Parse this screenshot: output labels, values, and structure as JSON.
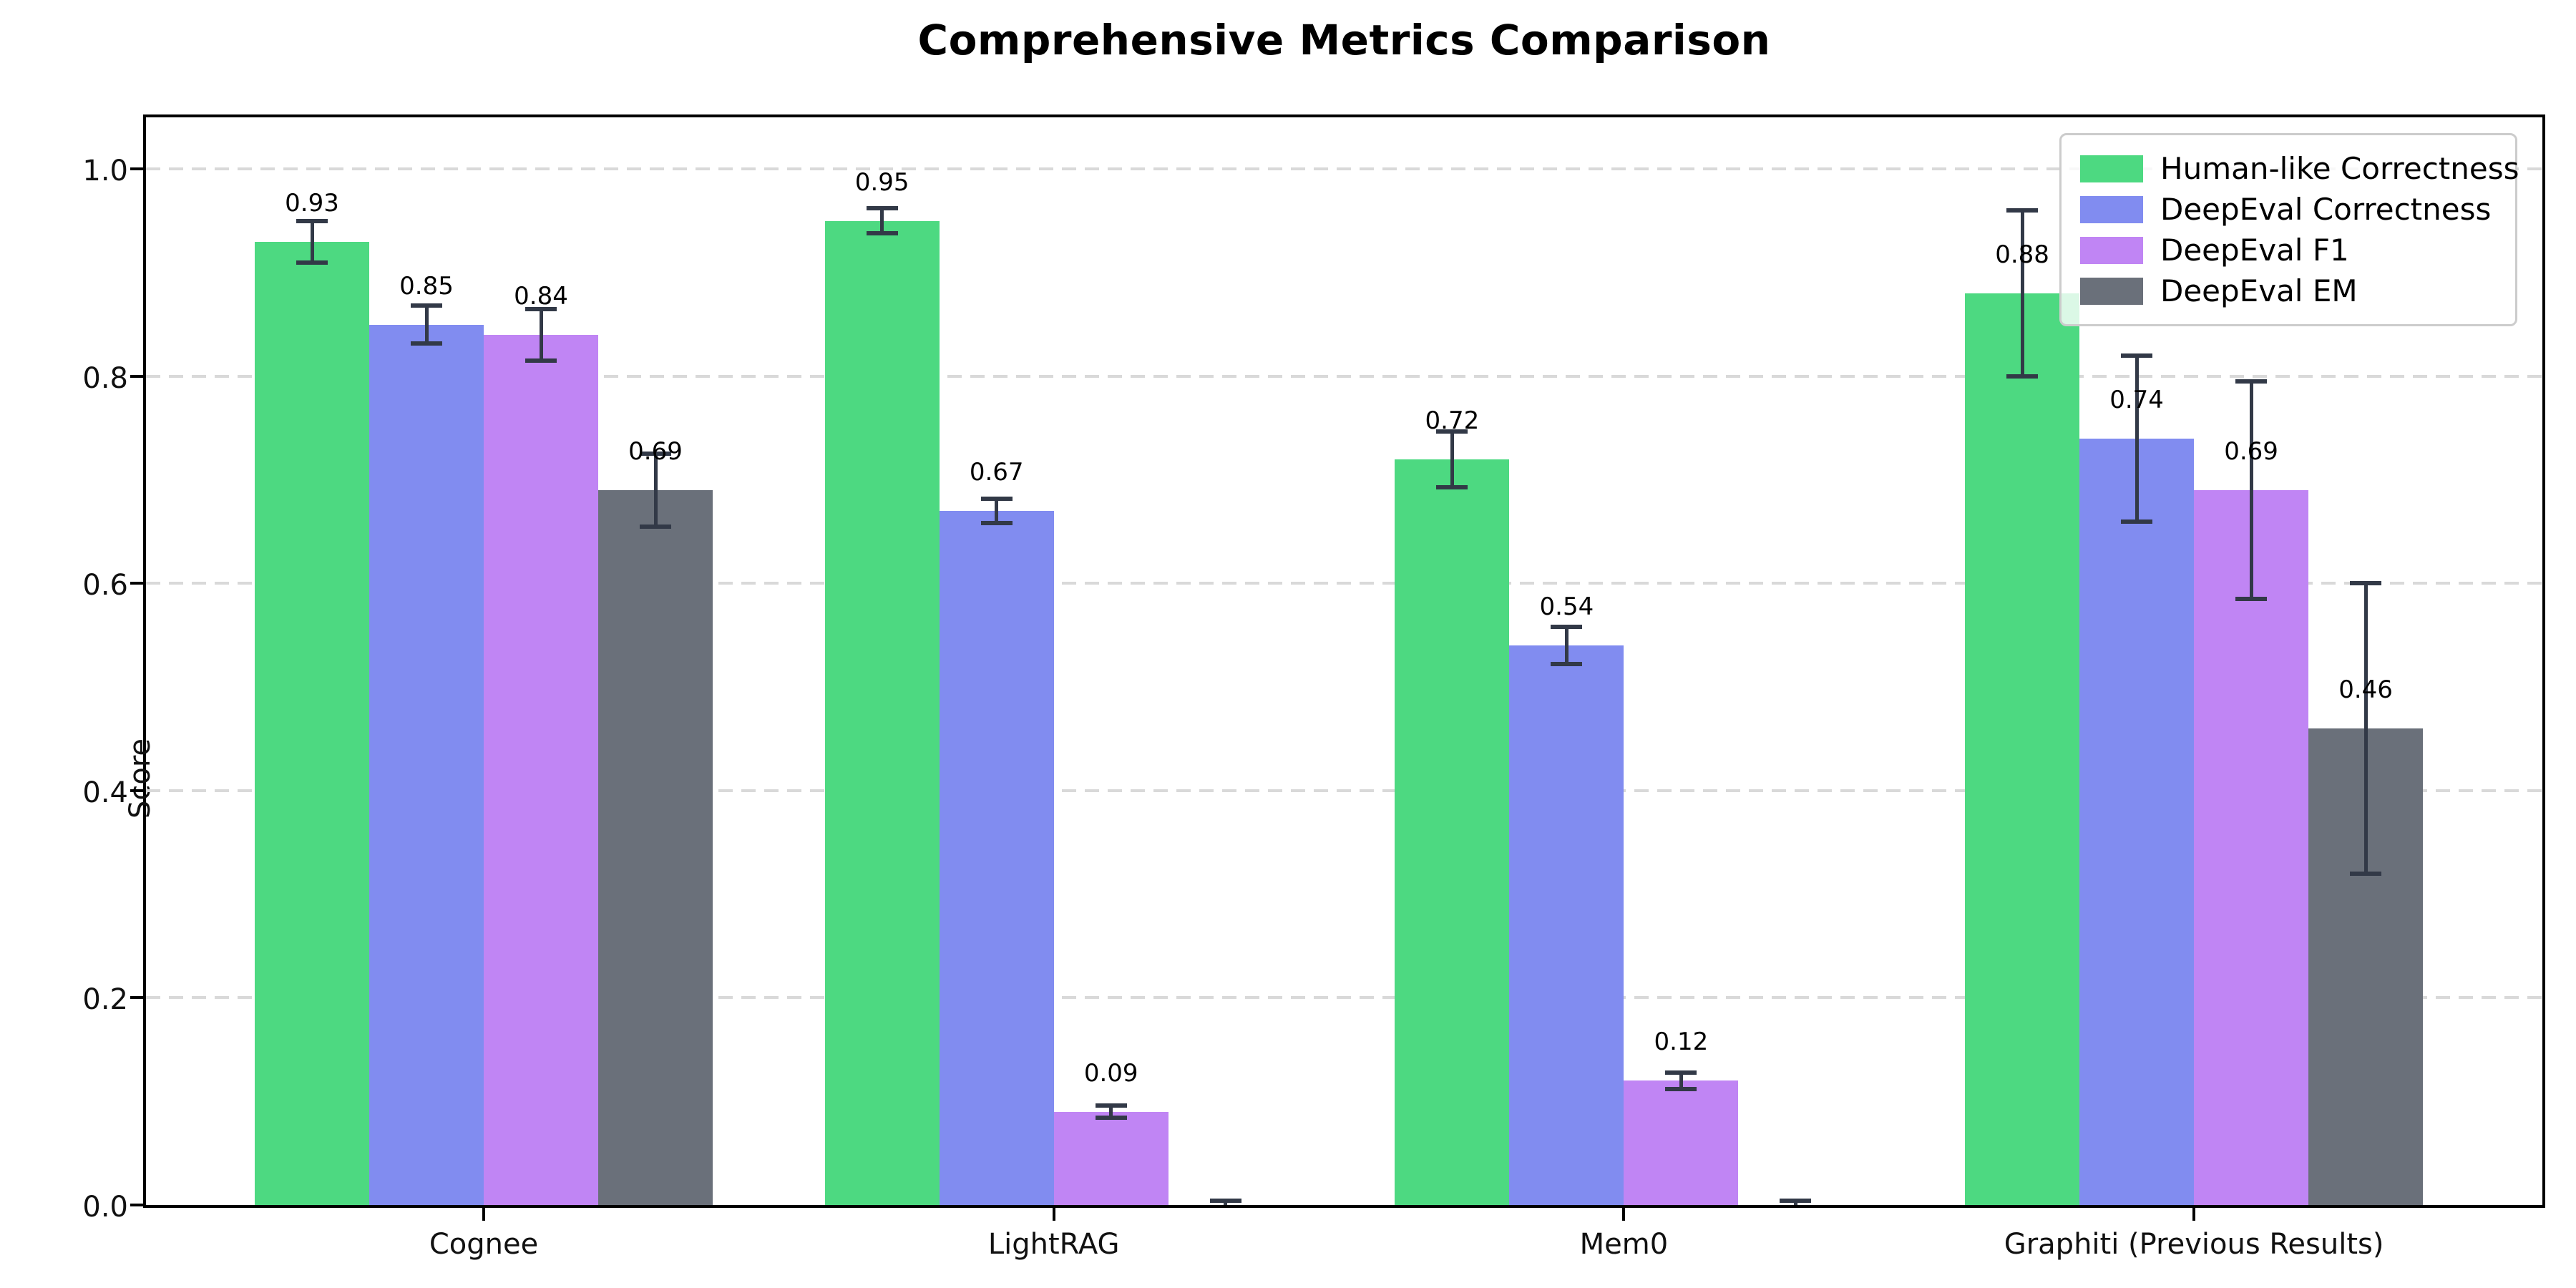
{
  "title": "Comprehensive Metrics Comparison",
  "chart_data": {
    "type": "bar",
    "title": "Comprehensive Metrics Comparison",
    "ylabel": "Score",
    "xlabel": "",
    "ylim": [
      0,
      1.05
    ],
    "grid": "horizontal dashed",
    "grid_color": "#d9d9d9",
    "legend_position": "upper right",
    "error_bar_color": "#323947",
    "categories": [
      "Cognee",
      "LightRAG",
      "Mem0",
      "Graphiti (Previous Results)"
    ],
    "yticks": [
      {
        "v": 0.0,
        "label": "0.0"
      },
      {
        "v": 0.2,
        "label": "0.2"
      },
      {
        "v": 0.4,
        "label": "0.4"
      },
      {
        "v": 0.6,
        "label": "0.6"
      },
      {
        "v": 0.8,
        "label": "0.8"
      },
      {
        "v": 1.0,
        "label": "1.0"
      }
    ],
    "series": [
      {
        "name": "Human-like Correctness",
        "color": "#4dd981",
        "values": [
          0.93,
          0.95,
          0.72,
          0.88
        ],
        "errors": [
          0.02,
          0.012,
          0.027,
          0.08
        ],
        "labels": [
          "0.93",
          "0.95",
          "0.72",
          "0.88"
        ]
      },
      {
        "name": "DeepEval Correctness",
        "color": "#818cf0",
        "values": [
          0.85,
          0.67,
          0.54,
          0.74
        ],
        "errors": [
          0.018,
          0.012,
          0.018,
          0.08
        ],
        "labels": [
          "0.85",
          "0.67",
          "0.54",
          "0.74"
        ]
      },
      {
        "name": "DeepEval F1",
        "color": "#c085f4",
        "values": [
          0.84,
          0.09,
          0.12,
          0.69
        ],
        "errors": [
          0.025,
          0.006,
          0.008,
          0.105
        ],
        "labels": [
          "0.84",
          "0.09",
          "0.12",
          "0.69"
        ]
      },
      {
        "name": "DeepEval EM",
        "color": "#6a707a",
        "values": [
          0.69,
          0.0,
          0.0,
          0.46
        ],
        "errors": [
          0.035,
          0.004,
          0.004,
          0.14
        ],
        "labels": [
          "0.69",
          "",
          "",
          "0.46"
        ]
      }
    ]
  }
}
